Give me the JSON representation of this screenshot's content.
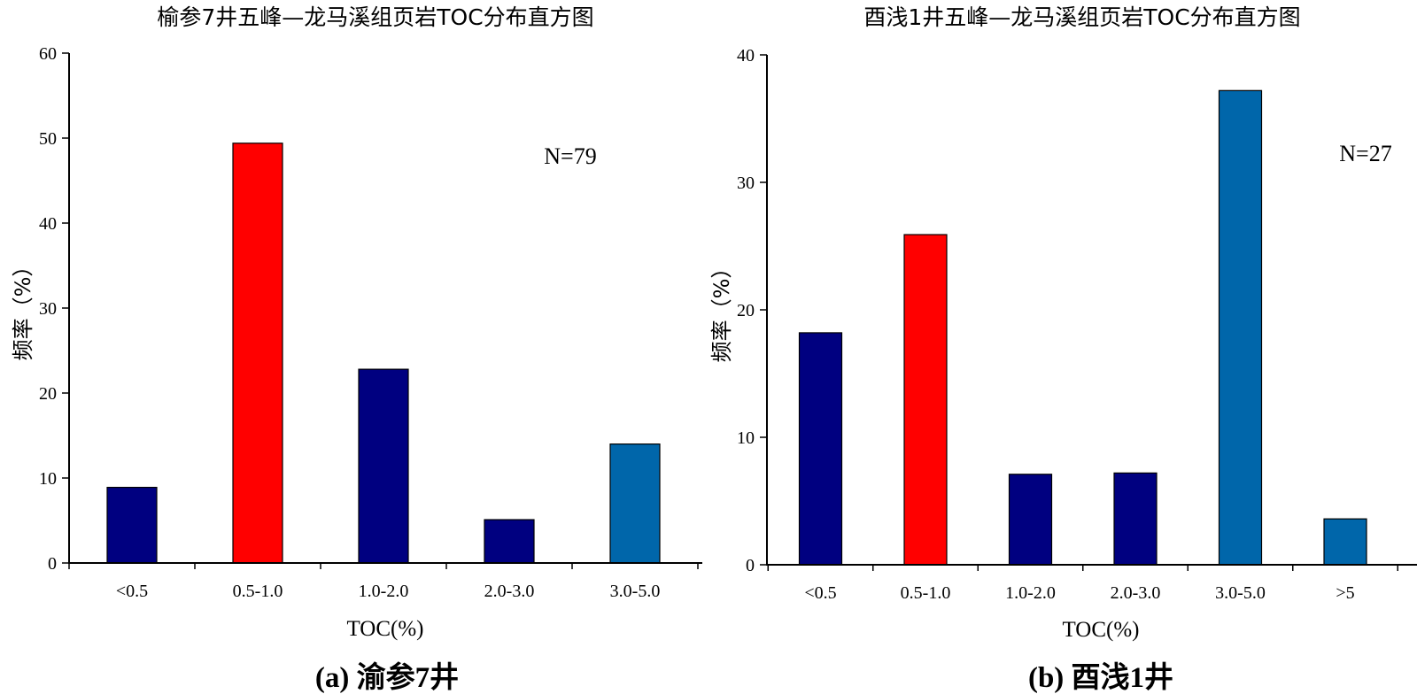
{
  "chart_data": [
    {
      "type": "bar",
      "title": "榆参7井五峰—龙马溪组页岩TOC分布直方图",
      "xlabel": "TOC(%)",
      "ylabel": "频率（%）",
      "categories": [
        "<0.5",
        "0.5-1.0",
        "1.0-2.0",
        "2.0-3.0",
        "3.0-5.0"
      ],
      "values": [
        8.9,
        49.4,
        22.8,
        5.1,
        14.0
      ],
      "bar_colors": [
        "#000080",
        "#ff0000",
        "#000080",
        "#000080",
        "#0066aa"
      ],
      "ylim": [
        0,
        60
      ],
      "yticks": [
        0,
        10,
        20,
        30,
        40,
        50,
        60
      ],
      "annotation": "N=79",
      "caption": "(a) 渝参7井"
    },
    {
      "type": "bar",
      "title": "酉浅1井五峰—龙马溪组页岩TOC分布直方图",
      "xlabel": "TOC(%)",
      "ylabel": "频率（%）",
      "categories": [
        "<0.5",
        "0.5-1.0",
        "1.0-2.0",
        "2.0-3.0",
        "3.0-5.0",
        ">5"
      ],
      "values": [
        18.2,
        25.9,
        7.1,
        7.2,
        37.2,
        3.6
      ],
      "bar_colors": [
        "#000080",
        "#ff0000",
        "#000080",
        "#000080",
        "#0066aa",
        "#0066aa"
      ],
      "ylim": [
        0,
        40
      ],
      "yticks": [
        0,
        10,
        20,
        30,
        40
      ],
      "annotation": "N=27",
      "caption": "(b) 酉浅1井"
    }
  ]
}
